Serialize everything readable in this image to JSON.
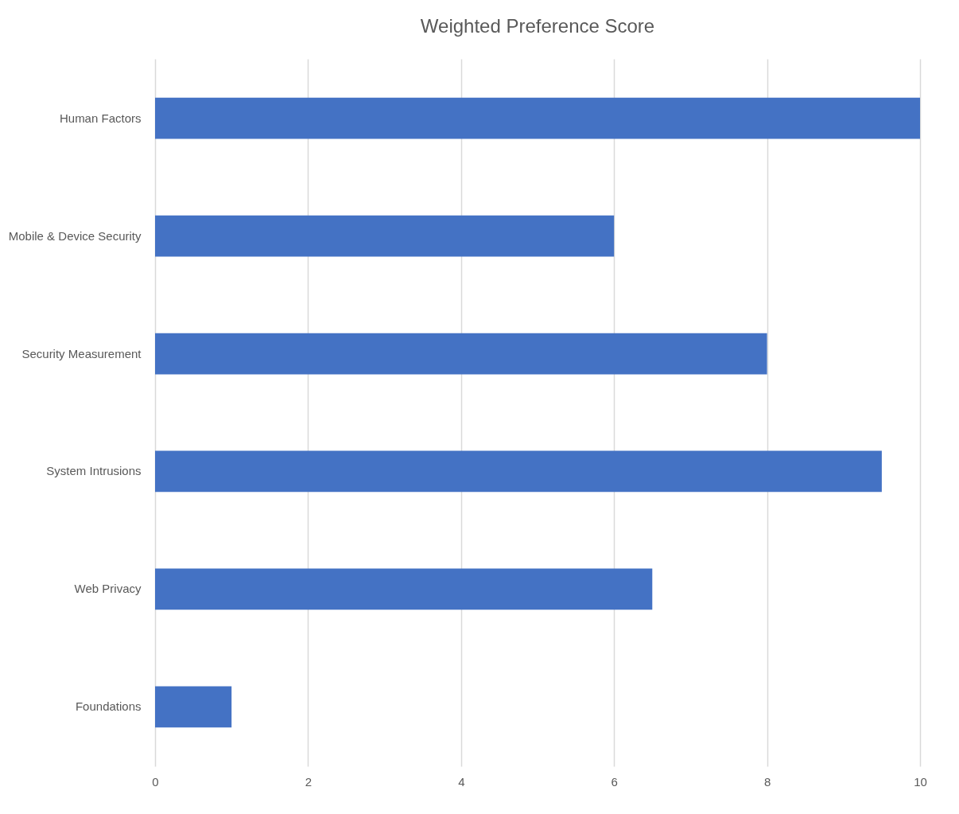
{
  "chart_data": {
    "type": "bar",
    "orientation": "horizontal",
    "title": "Weighted Preference Score",
    "categories": [
      "Human Factors",
      "Mobile & Device Security",
      "Security Measurement",
      "System Intrusions",
      "Web Privacy",
      "Foundations"
    ],
    "values": [
      10,
      6,
      8,
      9.5,
      6.5,
      1
    ],
    "color": "#4472c4",
    "xlim": [
      0,
      10
    ],
    "xticks": [
      0,
      2,
      4,
      6,
      8,
      10
    ],
    "grid": "x"
  }
}
